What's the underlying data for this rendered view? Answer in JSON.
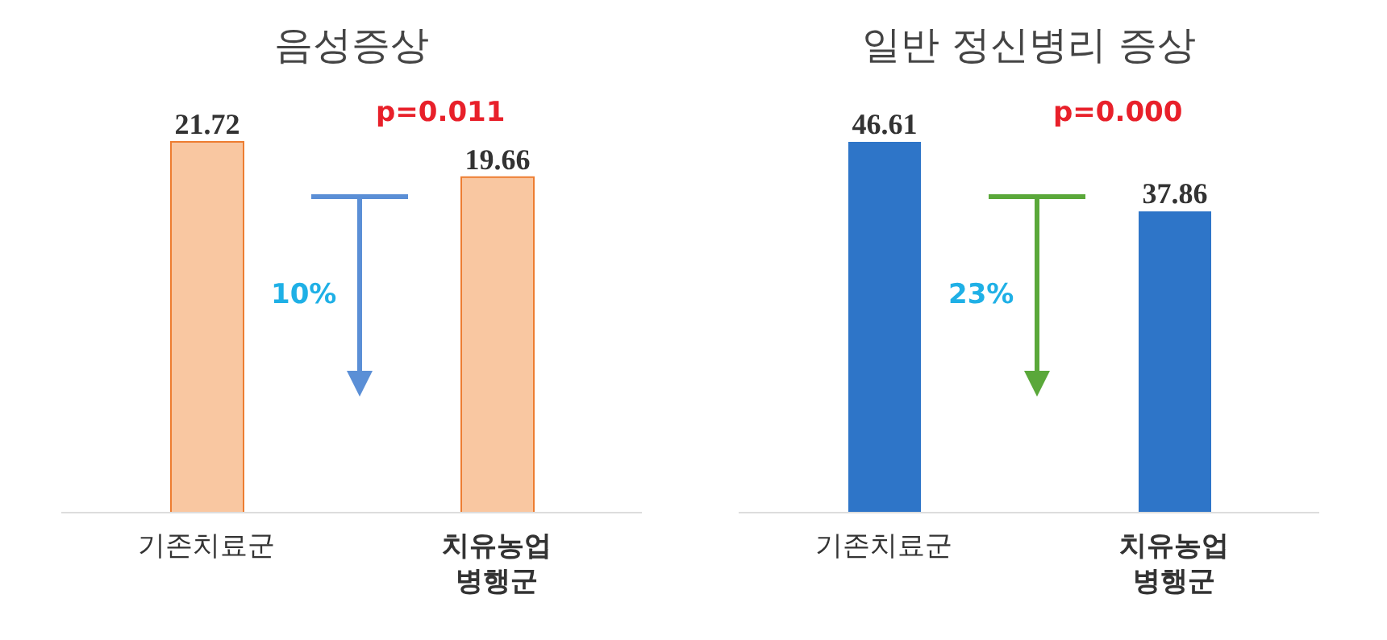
{
  "chart_data": [
    {
      "type": "bar",
      "title": "음성증상",
      "categories": [
        "기존치료군",
        "치유농업\n병행군"
      ],
      "values": [
        21.72,
        19.66
      ],
      "color": "#f8b98a",
      "data_labels": true,
      "legend": false,
      "grid": false,
      "annotations": [
        "10%",
        "p=0.011"
      ]
    },
    {
      "type": "bar",
      "title": "일반 정신병리 증상",
      "categories": [
        "기존치료군",
        "치유농업\n병행군"
      ],
      "values": [
        46.61,
        37.86
      ],
      "color": "#2e75c8",
      "data_labels": true,
      "legend": false,
      "grid": false,
      "annotations": [
        "23%",
        "p=0.000"
      ]
    }
  ]
}
